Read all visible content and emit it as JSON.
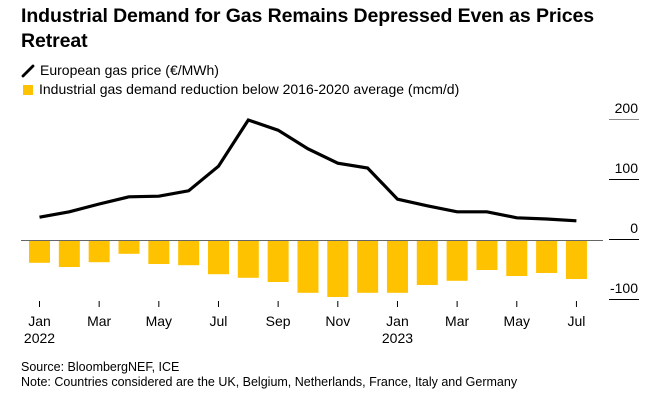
{
  "title": "Industrial Demand for Gas Remains Depressed Even as Prices Retreat",
  "legend": [
    {
      "label": "European gas price (€/MWh)",
      "icon": "line-icon",
      "color": "#000000"
    },
    {
      "label": "Industrial gas demand reduction below 2016-2020 average (mcm/d)",
      "icon": "square-icon",
      "color": "#FFC200"
    }
  ],
  "footer": {
    "source": "Source: BloombergNEF, ICE",
    "note": "Note: Countries considered are the UK, Belgium, Netherlands, France, Italy and Germany"
  },
  "chart_data": {
    "type": "bar+line",
    "title": "Industrial Demand for Gas Remains Depressed Even as Prices Retreat",
    "xlabel": "",
    "ylabel": "",
    "x": [
      "2022-01",
      "2022-02",
      "2022-03",
      "2022-04",
      "2022-05",
      "2022-06",
      "2022-07",
      "2022-08",
      "2022-09",
      "2022-10",
      "2022-11",
      "2022-12",
      "2023-01",
      "2023-02",
      "2023-03",
      "2023-04",
      "2023-05",
      "2023-06",
      "2023-07"
    ],
    "x_tick_labels": [
      {
        "index": 0,
        "label": "Jan",
        "year": "2022"
      },
      {
        "index": 2,
        "label": "Mar",
        "year": ""
      },
      {
        "index": 4,
        "label": "May",
        "year": ""
      },
      {
        "index": 6,
        "label": "Jul",
        "year": ""
      },
      {
        "index": 8,
        "label": "Sep",
        "year": ""
      },
      {
        "index": 10,
        "label": "Nov",
        "year": ""
      },
      {
        "index": 12,
        "label": "Jan",
        "year": "2023"
      },
      {
        "index": 14,
        "label": "Mar",
        "year": ""
      },
      {
        "index": 16,
        "label": "May",
        "year": ""
      },
      {
        "index": 18,
        "label": "Jul",
        "year": ""
      }
    ],
    "y_ticks": [
      200,
      100,
      0,
      -100
    ],
    "ylim": [
      -110,
      210
    ],
    "y_axis_position": "right",
    "grid": false,
    "legend_position": "top-left",
    "series": [
      {
        "name": "European gas price (€/MWh)",
        "type": "line",
        "color": "#000000",
        "values": [
          38,
          47,
          60,
          72,
          73,
          82,
          123,
          200,
          183,
          152,
          128,
          120,
          68,
          57,
          47,
          47,
          37,
          35,
          32
        ]
      },
      {
        "name": "Industrial gas demand reduction below 2016-2020 average (mcm/d)",
        "type": "bar",
        "color": "#FFC200",
        "values": [
          -38,
          -45,
          -37,
          -23,
          -40,
          -42,
          -57,
          -63,
          -70,
          -88,
          -95,
          -88,
          -88,
          -75,
          -68,
          -50,
          -60,
          -55,
          -65
        ]
      }
    ]
  }
}
